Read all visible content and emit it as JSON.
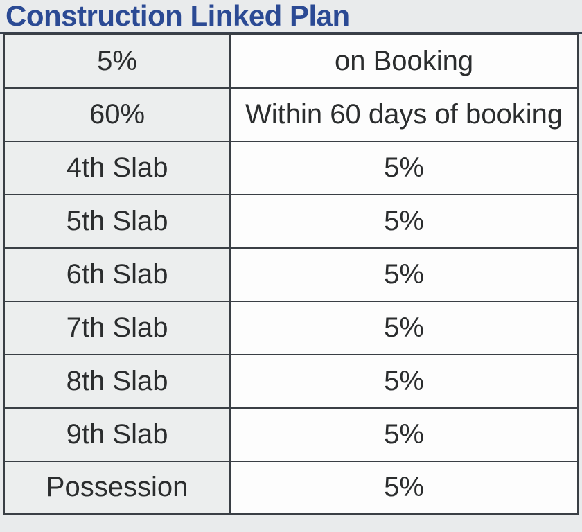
{
  "title": {
    "text": "Construction Linked Plan"
  },
  "colors": {
    "bg": "#e9ebec",
    "title-color": "#2b4a94",
    "rule-color": "#39414f",
    "border-color": "#3a3f45",
    "cell-left-bg": "#eceeee",
    "cell-right-bg": "#fdfdfd",
    "text-color": "#2b2d2e"
  },
  "table": {
    "columns": [
      "milestone",
      "payment"
    ],
    "rows": [
      {
        "milestone": "5%",
        "payment": "on Booking"
      },
      {
        "milestone": "60%",
        "payment": "Within 60 days of booking"
      },
      {
        "milestone": "4th Slab",
        "payment": "5%"
      },
      {
        "milestone": "5th Slab",
        "payment": "5%"
      },
      {
        "milestone": "6th Slab",
        "payment": "5%"
      },
      {
        "milestone": "7th Slab",
        "payment": "5%"
      },
      {
        "milestone": "8th Slab",
        "payment": "5%"
      },
      {
        "milestone": "9th Slab",
        "payment": "5%"
      },
      {
        "milestone": "Possession",
        "payment": "5%"
      }
    ]
  }
}
